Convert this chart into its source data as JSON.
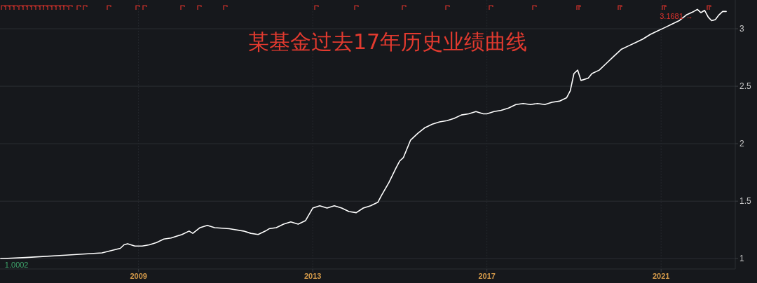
{
  "chart_data": {
    "type": "line",
    "title": "某基金过去17年历史业绩曲线",
    "x": [
      "2005-11",
      "2006-06",
      "2007-05",
      "2008-03",
      "2008-08",
      "2008-09",
      "2008-10",
      "2008-12",
      "2009-02",
      "2009-04",
      "2009-06",
      "2009-08",
      "2009-10",
      "2010-01",
      "2010-03",
      "2010-04",
      "2010-06",
      "2010-08",
      "2010-10",
      "2011-02",
      "2011-06",
      "2011-08",
      "2011-10",
      "2011-12",
      "2012-01",
      "2012-03",
      "2012-05",
      "2012-07",
      "2012-09",
      "2012-11",
      "2013-01",
      "2013-03",
      "2013-05",
      "2013-07",
      "2013-09",
      "2013-11",
      "2014-01",
      "2014-03",
      "2014-05",
      "2014-07",
      "2014-08",
      "2014-10",
      "2014-12",
      "2015-01",
      "2015-02",
      "2015-04",
      "2015-06",
      "2015-08",
      "2015-10",
      "2015-12",
      "2016-02",
      "2016-04",
      "2016-06",
      "2016-08",
      "2016-10",
      "2016-12",
      "2017-01",
      "2017-03",
      "2017-05",
      "2017-07",
      "2017-09",
      "2017-11",
      "2018-01",
      "2018-03",
      "2018-05",
      "2018-07",
      "2018-09",
      "2018-11",
      "2018-12",
      "2019-01",
      "2019-02",
      "2019-03",
      "2019-05",
      "2019-06",
      "2019-08",
      "2019-10",
      "2019-12",
      "2020-02",
      "2020-04",
      "2020-06",
      "2020-08",
      "2020-10",
      "2020-12",
      "2021-02",
      "2021-04",
      "2021-06",
      "2021-08",
      "2021-10",
      "2021-11",
      "2021-12",
      "2022-01",
      "2022-02",
      "2022-03",
      "2022-04",
      "2022-05",
      "2022-06",
      "2022-07"
    ],
    "series": [
      {
        "color": "#ffffff",
        "values": [
          1.0002,
          1.01,
          1.03,
          1.05,
          1.09,
          1.12,
          1.13,
          1.11,
          1.11,
          1.12,
          1.14,
          1.17,
          1.18,
          1.21,
          1.24,
          1.22,
          1.27,
          1.29,
          1.27,
          1.26,
          1.24,
          1.22,
          1.21,
          1.24,
          1.26,
          1.27,
          1.3,
          1.32,
          1.3,
          1.33,
          1.44,
          1.46,
          1.44,
          1.46,
          1.44,
          1.41,
          1.4,
          1.44,
          1.46,
          1.49,
          1.55,
          1.66,
          1.79,
          1.85,
          1.88,
          2.03,
          2.09,
          2.14,
          2.17,
          2.19,
          2.2,
          2.22,
          2.25,
          2.26,
          2.28,
          2.26,
          2.26,
          2.28,
          2.29,
          2.31,
          2.34,
          2.35,
          2.34,
          2.35,
          2.34,
          2.36,
          2.37,
          2.4,
          2.46,
          2.61,
          2.64,
          2.55,
          2.57,
          2.61,
          2.64,
          2.7,
          2.76,
          2.82,
          2.85,
          2.88,
          2.91,
          2.95,
          2.98,
          3.01,
          3.04,
          3.07,
          3.12,
          3.15,
          3.1681,
          3.14,
          3.16,
          3.1,
          3.07,
          3.08,
          3.12,
          3.15,
          3.15
        ]
      }
    ],
    "annotations": [
      {
        "text": "1.0002",
        "x": "2005-11",
        "y": 1.0002
      },
      {
        "text": "3.1681 →",
        "x": "2021-11",
        "y": 3.1681
      }
    ],
    "xlim": [
      "2005-10-27",
      "2022-09-15"
    ],
    "xticks": [
      "2009",
      "2013",
      "2017",
      "2021"
    ],
    "ylim": [
      0.91,
      3.25
    ],
    "yticks": [
      1,
      1.5,
      2,
      2.5,
      3
    ],
    "grid": true
  }
}
